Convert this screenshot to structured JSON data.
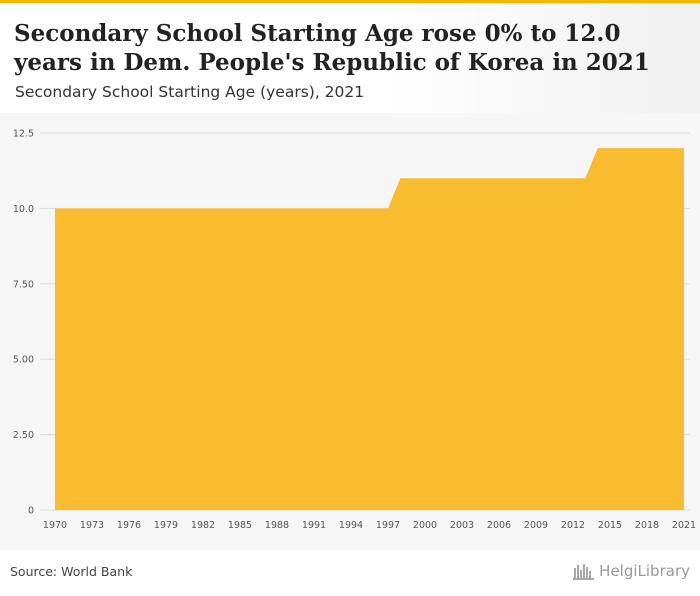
{
  "header": {
    "title": "Secondary School Starting Age rose 0% to 12.0 years in Dem. People's Republic of Korea in 2021",
    "subtitle": "Secondary School Starting Age (years), 2021"
  },
  "footer": {
    "source": "Source: World Bank",
    "brand": "HelgiLibrary"
  },
  "colors": {
    "area_fill": "#f9bc30",
    "accent": "#f5b400",
    "grid": "#dddddd",
    "plot_background": "#f6f6f6"
  },
  "chart_data": {
    "type": "area",
    "title": "Secondary School Starting Age rose 0% to 12.0 years in Dem. People's Republic of Korea in 2021",
    "subtitle": "Secondary School Starting Age (years), 2021",
    "xlabel": "",
    "ylabel": "",
    "xlim": [
      1970,
      2021
    ],
    "ylim": [
      0,
      12.5
    ],
    "y_ticks": [
      0,
      2.5,
      5,
      7.5,
      10,
      12.5
    ],
    "y_tick_labels": [
      "0",
      "2.50",
      "5.00",
      "7.50",
      "10.0",
      "12.5"
    ],
    "x_ticks": [
      1970,
      1973,
      1976,
      1979,
      1982,
      1985,
      1988,
      1991,
      1994,
      1997,
      2000,
      2003,
      2006,
      2009,
      2012,
      2015,
      2018,
      2021
    ],
    "x_tick_labels": [
      "1970",
      "1973",
      "1976",
      "1979",
      "1982",
      "1985",
      "1988",
      "1991",
      "1994",
      "1997",
      "2000",
      "2003",
      "2006",
      "2009",
      "2012",
      "2015",
      "2018",
      "2021"
    ],
    "grid": true,
    "legend": "none",
    "x": [
      1970,
      1997,
      1998,
      2013,
      2014,
      2021
    ],
    "series": [
      {
        "values": [
          10,
          10,
          11,
          11,
          12,
          12
        ]
      }
    ]
  }
}
